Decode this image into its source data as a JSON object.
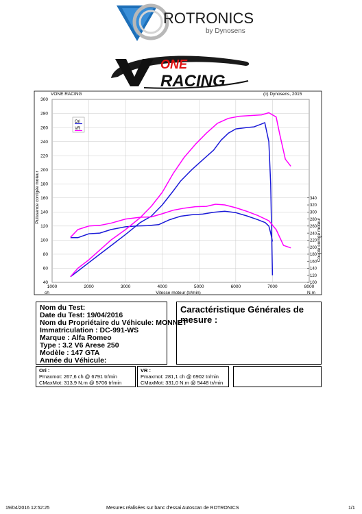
{
  "logo": {
    "brand": "ROTRONICS",
    "sub": "by Dynosens",
    "vone_top": "ONE",
    "vone_bottom": "RACING"
  },
  "chart_data": {
    "type": "line",
    "header_left": "VONE RACING",
    "header_right": "(c) Dynosens, 2015",
    "xlabel": "Vitesse moteur (tr/min)",
    "xunit": "N.m",
    "ylabel_left": "Puissance corrigée moteur",
    "ylabel_left_unit": "ch",
    "ylabel_right": "Couple corrigé moteur",
    "xlim": [
      1000,
      8000
    ],
    "xticks": [
      1000,
      2000,
      3000,
      4000,
      5000,
      6000,
      7000,
      8000
    ],
    "ylim_left": [
      40,
      300
    ],
    "yticks_left": [
      40,
      60,
      80,
      100,
      120,
      140,
      160,
      180,
      200,
      220,
      240,
      260,
      280,
      300
    ],
    "ylim_right": [
      100,
      340
    ],
    "yticks_right": [
      100,
      120,
      140,
      160,
      180,
      200,
      220,
      240,
      260,
      280,
      300,
      320,
      340
    ],
    "legend": [
      "Ori",
      "VR"
    ],
    "colors": {
      "Ori": "#1a1ad8",
      "VR": "#ff00ff"
    },
    "series": [
      {
        "name": "Ori",
        "axis": "left",
        "kind": "power",
        "x": [
          1500,
          1700,
          2000,
          2300,
          2600,
          3000,
          3400,
          3700,
          4000,
          4300,
          4500,
          4800,
          5100,
          5400,
          5600,
          5800,
          6000,
          6300,
          6500,
          6700,
          6790,
          6900,
          6950,
          7000
        ],
        "y": [
          48,
          56,
          68,
          80,
          92,
          108,
          125,
          134,
          150,
          170,
          184,
          200,
          214,
          228,
          242,
          252,
          258,
          260,
          261,
          265,
          267,
          240,
          180,
          50
        ]
      },
      {
        "name": "Ori",
        "axis": "right",
        "kind": "torque",
        "x": [
          1500,
          1700,
          2000,
          2300,
          2600,
          3000,
          3300,
          3600,
          3900,
          4200,
          4500,
          4800,
          5100,
          5400,
          5700,
          6000,
          6300,
          6600,
          6800,
          6900,
          6950,
          7000
        ],
        "y": [
          227,
          227,
          238,
          240,
          250,
          258,
          260,
          261,
          264,
          278,
          288,
          292,
          294,
          299,
          302,
          298,
          289,
          278,
          270,
          260,
          240,
          216
        ]
      },
      {
        "name": "VR",
        "axis": "left",
        "kind": "power",
        "x": [
          1500,
          1700,
          2000,
          2300,
          2600,
          3000,
          3400,
          3700,
          4000,
          4300,
          4600,
          4900,
          5200,
          5500,
          5800,
          6100,
          6400,
          6700,
          6900,
          7100,
          7200,
          7350,
          7500
        ],
        "y": [
          48,
          60,
          72,
          86,
          100,
          115,
          132,
          148,
          168,
          195,
          218,
          236,
          252,
          266,
          273,
          276,
          277,
          278,
          281,
          275,
          250,
          215,
          205
        ]
      },
      {
        "name": "VR",
        "axis": "right",
        "kind": "torque",
        "x": [
          1500,
          1700,
          2000,
          2300,
          2600,
          3000,
          3400,
          3700,
          4000,
          4300,
          4600,
          4900,
          5200,
          5450,
          5700,
          6000,
          6300,
          6600,
          6900,
          7100,
          7300,
          7500
        ],
        "y": [
          228,
          250,
          260,
          262,
          268,
          280,
          285,
          286,
          295,
          305,
          311,
          315,
          316,
          322,
          320,
          312,
          302,
          290,
          275,
          250,
          205,
          198
        ]
      }
    ]
  },
  "test_info": [
    {
      "label": "Nom du Test:",
      "value": ""
    },
    {
      "label": "Date du Test:",
      "value": "19/04/2016"
    },
    {
      "label": "Nom du Propriétaire du Véhicule:",
      "value": "MONNET"
    },
    {
      "label": "Immatriculation  :",
      "value": "DC-991-WS"
    },
    {
      "label": "Marque  :",
      "value": "Alfa Romeo"
    },
    {
      "label": "Type  :",
      "value": "3.2 V6 Arese 250"
    },
    {
      "label": "Modèle  :",
      "value": "147 GTA"
    },
    {
      "label": "Année du Véhicule:",
      "value": ""
    }
  ],
  "carac": {
    "title": "Caractéristique Générales de mesure :"
  },
  "results": {
    "ori": {
      "title": "Ori :",
      "pmax": "Pmaxmot: 267,6 ch @ 6791 tr/min",
      "cmax": "CMaxMot: 313,9 N.m @ 5706 tr/min"
    },
    "vr": {
      "title": "VR :",
      "pmax": "Pmaxmot: 281,1 ch @ 6902 tr/min",
      "cmax": "CMaxMot: 331,0 N.m @ 5448 tr/min"
    }
  },
  "footer": {
    "datetime": "19/04/2016 12:52:25",
    "message": "Mesures réalisées sur banc d'essai Autoscan de ROTRONICS",
    "page": "1/1"
  }
}
